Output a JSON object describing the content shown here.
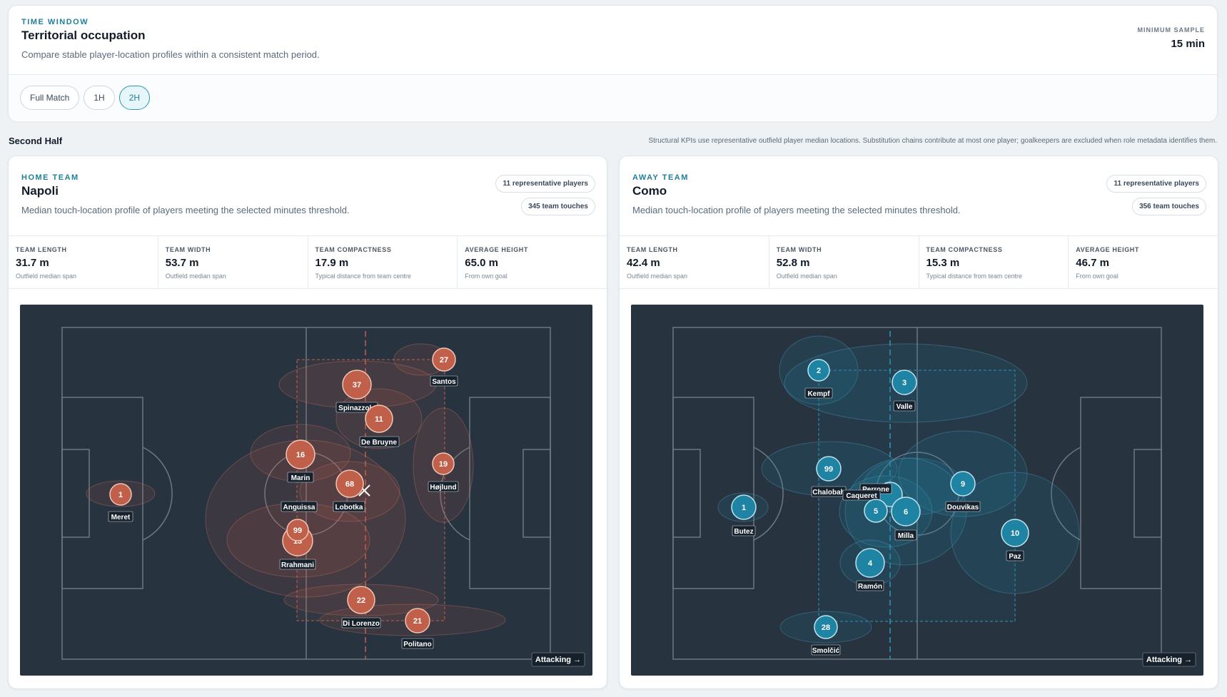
{
  "window_card": {
    "eyebrow": "TIME WINDOW",
    "title": "Territorial occupation",
    "subtitle": "Compare stable player-location profiles within a consistent match period.",
    "min_sample_label": "MINIMUM SAMPLE",
    "min_sample_value": "15 min",
    "tabs": [
      {
        "label": "Full Match",
        "active": false
      },
      {
        "label": "1H",
        "active": false
      },
      {
        "label": "2H",
        "active": true
      }
    ]
  },
  "section": {
    "title": "Second Half",
    "note": "Structural KPIs use representative outfield player median locations. Substitution chains contribute at most one player; goalkeepers are excluded when role metadata identifies them."
  },
  "teams": [
    {
      "eyebrow": "HOME TEAM",
      "name": "Napoli",
      "subtitle": "Median touch-location profile of players meeting the selected minutes threshold.",
      "chip_players": "11 representative players",
      "chip_touches": "345 team touches",
      "color": "#c0604a",
      "kpis": [
        {
          "label": "TEAM LENGTH",
          "value": "31.7 m",
          "note": "Outfield median span"
        },
        {
          "label": "TEAM WIDTH",
          "value": "53.7 m",
          "note": "Outfield median span"
        },
        {
          "label": "TEAM COMPACTNESS",
          "value": "17.9 m",
          "note": "Typical distance from team centre"
        },
        {
          "label": "AVERAGE HEIGHT",
          "value": "65.0 m",
          "note": "From own goal"
        }
      ],
      "attacking": "Attacking →",
      "players": [
        {
          "num": "27",
          "name": "Santos"
        },
        {
          "num": "37",
          "name": "Spinazzola"
        },
        {
          "num": "11",
          "name": "De Bruyne"
        },
        {
          "num": "16",
          "name": "Marin"
        },
        {
          "num": "19",
          "name": "Højlund"
        },
        {
          "num": "68",
          "name": "Lobotka"
        },
        {
          "num": "1",
          "name": "Meret"
        },
        {
          "num": "",
          "name": "Anguissa"
        },
        {
          "num": "99",
          "name": ""
        },
        {
          "num": "13",
          "name": "Rrahmani"
        },
        {
          "num": "22",
          "name": "Di Lorenzo"
        },
        {
          "num": "21",
          "name": "Politano"
        }
      ]
    },
    {
      "eyebrow": "AWAY TEAM",
      "name": "Como",
      "subtitle": "Median touch-location profile of players meeting the selected minutes threshold.",
      "chip_players": "11 representative players",
      "chip_touches": "356 team touches",
      "color": "#1f84a3",
      "kpis": [
        {
          "label": "TEAM LENGTH",
          "value": "42.4 m",
          "note": "Outfield median span"
        },
        {
          "label": "TEAM WIDTH",
          "value": "52.8 m",
          "note": "Outfield median span"
        },
        {
          "label": "TEAM COMPACTNESS",
          "value": "15.3 m",
          "note": "Typical distance from team centre"
        },
        {
          "label": "AVERAGE HEIGHT",
          "value": "46.7 m",
          "note": "From own goal"
        }
      ],
      "attacking": "Attacking →",
      "players": [
        {
          "num": "2",
          "name": "Kempf"
        },
        {
          "num": "3",
          "name": "Valle"
        },
        {
          "num": "99",
          "name": "Chalobah"
        },
        {
          "num": "",
          "name": "Perrone"
        },
        {
          "num": "",
          "name": "Caqueret"
        },
        {
          "num": "9",
          "name": "Douvikas"
        },
        {
          "num": "1",
          "name": "Butez"
        },
        {
          "num": "5",
          "name": ""
        },
        {
          "num": "6",
          "name": "Milla"
        },
        {
          "num": "10",
          "name": "Paz"
        },
        {
          "num": "4",
          "name": "Ramón"
        },
        {
          "num": "28",
          "name": "Smolčić"
        }
      ]
    }
  ]
}
